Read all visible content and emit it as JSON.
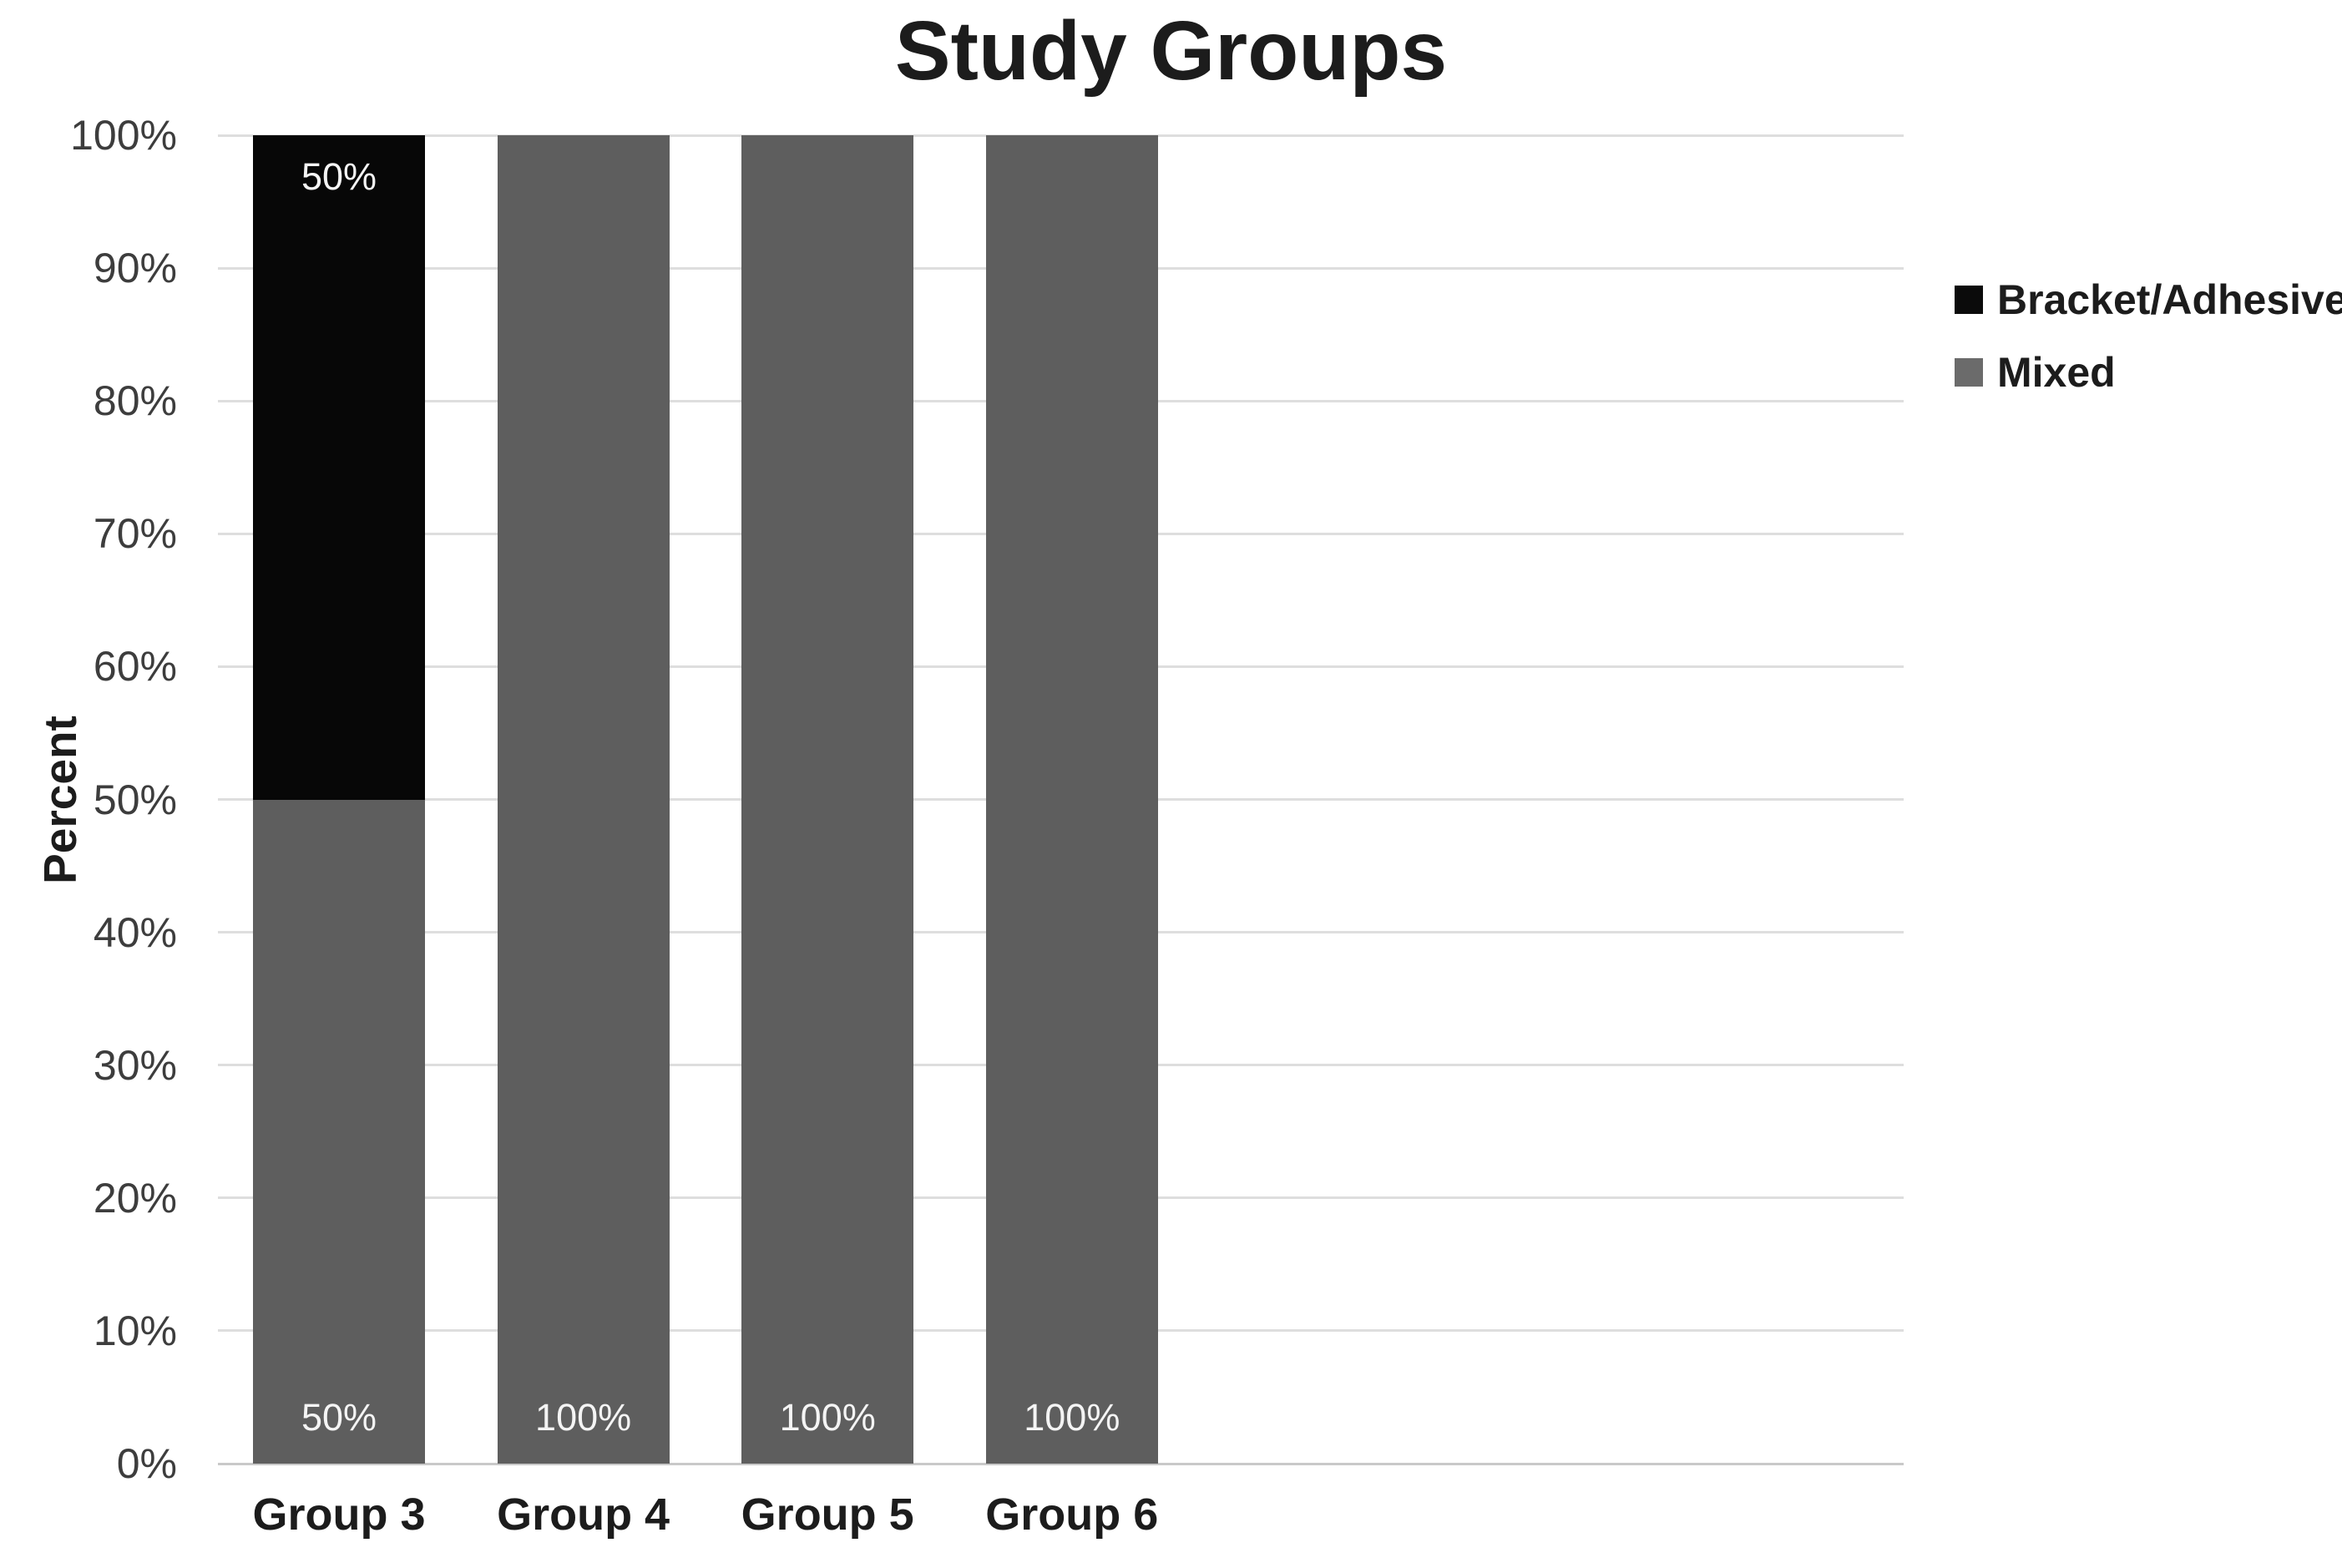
{
  "title": "Study Groups",
  "y_axis": {
    "title": "Percent",
    "ticks": [
      "0%",
      "10%",
      "20%",
      "30%",
      "40%",
      "50%",
      "60%",
      "70%",
      "80%",
      "90%",
      "100%"
    ]
  },
  "x_axis": {
    "categories": [
      "Group 3",
      "Group 4",
      "Group 5",
      "Group 6"
    ]
  },
  "legend": {
    "position": "right",
    "items": [
      {
        "label": "Bracket/Adhesive",
        "color": "#0b0b0b"
      },
      {
        "label": "Mixed",
        "color": "#6b6b6b"
      }
    ]
  },
  "colors": {
    "background": "#ffffff",
    "gridline": "#dedede",
    "axis_line": "#c9c9c9",
    "text": "#1c1c1c",
    "tick_text": "#3d3d3d",
    "data_label_text": "#f4f4f4"
  },
  "chart_data": {
    "type": "bar",
    "stacked": true,
    "title": "Study Groups",
    "xlabel": "",
    "ylabel": "Percent",
    "ylim": [
      0,
      100
    ],
    "grid": true,
    "legend_position": "right",
    "categories": [
      "Group 3",
      "Group 4",
      "Group 5",
      "Group 6"
    ],
    "yticks": [
      "0%",
      "10%",
      "20%",
      "30%",
      "40%",
      "50%",
      "60%",
      "70%",
      "80%",
      "90%",
      "100%"
    ],
    "series": [
      {
        "name": "Mixed",
        "color": "#5e5e5e",
        "values": [
          50,
          100,
          100,
          100
        ],
        "data_labels": [
          "50%",
          "100%",
          "100%",
          "100%"
        ],
        "label_position": "inside-base"
      },
      {
        "name": "Bracket/Adhesive",
        "color": "#070707",
        "values": [
          50,
          0,
          0,
          0
        ],
        "data_labels": [
          "50%",
          "",
          "",
          ""
        ],
        "label_position": "inside-end"
      }
    ]
  }
}
